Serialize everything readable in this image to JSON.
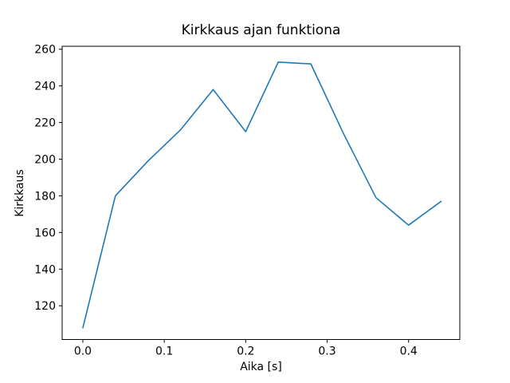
{
  "figure": {
    "background": "#ffffff",
    "title": "Kirkkaus ajan funktiona",
    "xlabel": "Aika [s]",
    "ylabel": "Kirkkaus"
  },
  "chart_data": {
    "type": "line",
    "title": "Kirkkaus ajan funktiona",
    "xlabel": "Aika [s]",
    "ylabel": "Kirkkaus",
    "x": [
      0.0,
      0.04,
      0.08,
      0.12,
      0.16,
      0.2,
      0.24,
      0.28,
      0.32,
      0.36,
      0.4,
      0.44
    ],
    "series": [
      {
        "name": "kirkkaus",
        "color": "#1f77b4",
        "line_width": 1.6,
        "values": [
          108,
          180,
          199,
          216,
          238,
          215,
          253,
          252,
          214,
          179,
          164,
          177
        ]
      }
    ],
    "xlim": [
      -0.0254,
      0.4629
    ],
    "ylim": [
      101.6,
      261.6
    ],
    "xticks": [
      0.0,
      0.1,
      0.2,
      0.3,
      0.4
    ],
    "xtick_labels": [
      "0.0",
      "0.1",
      "0.2",
      "0.3",
      "0.4"
    ],
    "yticks": [
      120,
      140,
      160,
      180,
      200,
      220,
      240,
      260
    ],
    "ytick_labels": [
      "120",
      "140",
      "160",
      "180",
      "200",
      "220",
      "240",
      "260"
    ],
    "grid": false,
    "legend": null,
    "spine_color": "#000000"
  }
}
